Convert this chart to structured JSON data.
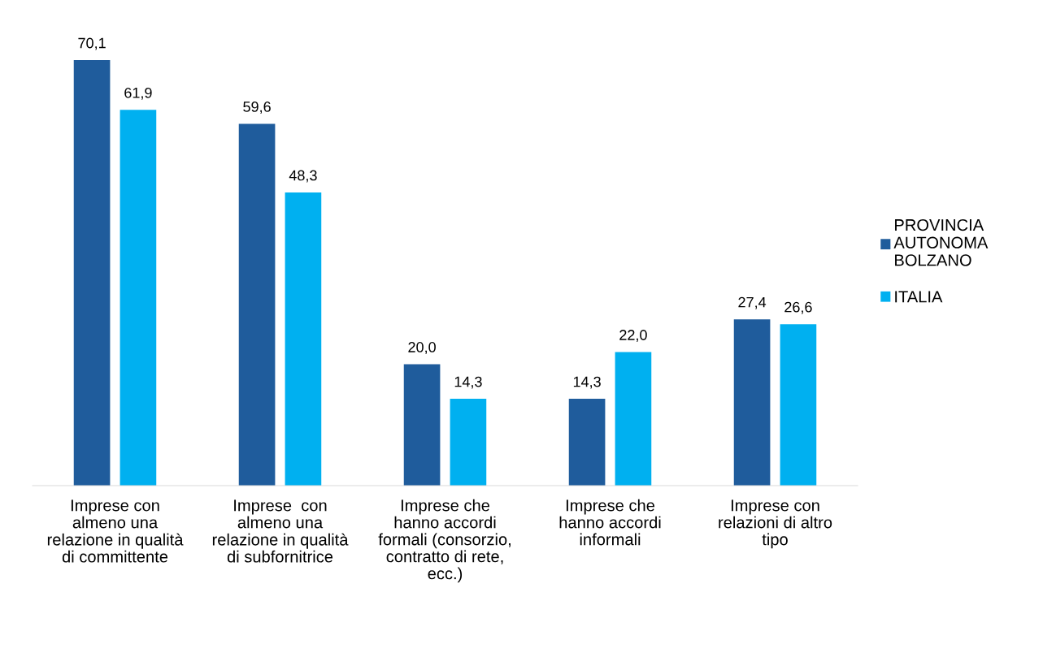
{
  "chart_data": {
    "type": "bar",
    "categories": [
      "Imprese con\nalmeno una\nrelazione in qualità\ndi committente",
      "Imprese  con\nalmeno una\nrelazione in qualità\ndi subfornitrice",
      "Imprese che\nhanno accordi\nformali (consorzio,\ncontratto di rete,\necc.)",
      "Imprese che\nhanno accordi\ninformali",
      "Imprese con\nrelazioni di altro\ntipo"
    ],
    "series": [
      {
        "name": "PROVINCIA\nAUTONOMA\nBOLZANO",
        "color": "#1f5c9c",
        "values": [
          70.1,
          59.6,
          20.0,
          14.3,
          27.4
        ],
        "value_labels": [
          "70,1",
          "59,6",
          "20,0",
          "14,3",
          "27,4"
        ]
      },
      {
        "name": "ITALIA",
        "color": "#00b0f0",
        "values": [
          61.9,
          48.3,
          14.3,
          22.0,
          26.6
        ],
        "value_labels": [
          "61,9",
          "48,3",
          "14,3",
          "22,0",
          "26,6"
        ]
      }
    ],
    "legend": "right",
    "grid": false,
    "tick_labels": "x"
  }
}
